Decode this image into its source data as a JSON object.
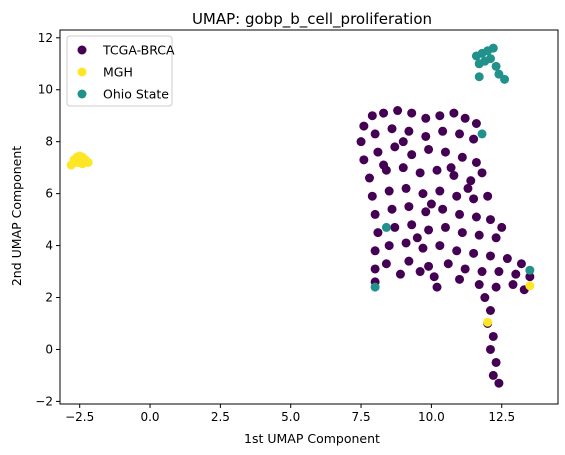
{
  "chart_data": {
    "type": "scatter",
    "title": "UMAP: gobp_b_cell_proliferation",
    "xlabel": "1st UMAP Component",
    "ylabel": "2nd UMAP Component",
    "xlim": [
      -3.2,
      14.5
    ],
    "ylim": [
      -2.1,
      12.3
    ],
    "xticks": [
      -2.5,
      0.0,
      2.5,
      5.0,
      7.5,
      10.0,
      12.5
    ],
    "xtick_labels": [
      "−2.5",
      "0.0",
      "2.5",
      "5.0",
      "7.5",
      "10.0",
      "12.5"
    ],
    "yticks": [
      -2,
      0,
      2,
      4,
      6,
      8,
      10,
      12
    ],
    "ytick_labels": [
      "−2",
      "0",
      "2",
      "4",
      "6",
      "8",
      "10",
      "12"
    ],
    "grid": false,
    "legend_position": "top-left",
    "series": [
      {
        "name": "TCGA-BRCA",
        "color": "#440154",
        "points": [
          [
            7.6,
            8.6
          ],
          [
            7.9,
            9.0
          ],
          [
            8.3,
            9.1
          ],
          [
            8.8,
            9.2
          ],
          [
            9.3,
            9.1
          ],
          [
            9.8,
            8.9
          ],
          [
            10.3,
            9.0
          ],
          [
            10.8,
            9.1
          ],
          [
            11.2,
            8.9
          ],
          [
            11.6,
            8.7
          ],
          [
            7.5,
            8.0
          ],
          [
            8.0,
            8.3
          ],
          [
            8.6,
            8.5
          ],
          [
            9.2,
            8.4
          ],
          [
            9.8,
            8.2
          ],
          [
            10.4,
            8.4
          ],
          [
            11.0,
            8.3
          ],
          [
            11.5,
            8.1
          ],
          [
            7.6,
            7.3
          ],
          [
            8.1,
            7.6
          ],
          [
            8.7,
            7.8
          ],
          [
            9.3,
            7.5
          ],
          [
            9.9,
            7.7
          ],
          [
            10.5,
            7.6
          ],
          [
            11.1,
            7.4
          ],
          [
            11.6,
            7.2
          ],
          [
            7.8,
            6.6
          ],
          [
            8.4,
            6.9
          ],
          [
            9.0,
            7.0
          ],
          [
            9.6,
            6.8
          ],
          [
            10.2,
            6.9
          ],
          [
            10.8,
            6.7
          ],
          [
            11.4,
            6.5
          ],
          [
            11.8,
            6.8
          ],
          [
            7.9,
            5.9
          ],
          [
            8.5,
            6.1
          ],
          [
            9.1,
            6.2
          ],
          [
            9.7,
            6.0
          ],
          [
            10.3,
            6.1
          ],
          [
            10.9,
            5.9
          ],
          [
            11.5,
            5.8
          ],
          [
            12.0,
            5.9
          ],
          [
            8.0,
            5.2
          ],
          [
            8.6,
            5.4
          ],
          [
            9.2,
            5.5
          ],
          [
            9.8,
            5.3
          ],
          [
            10.4,
            5.4
          ],
          [
            11.0,
            5.2
          ],
          [
            11.6,
            5.1
          ],
          [
            12.1,
            5.0
          ],
          [
            8.1,
            4.5
          ],
          [
            8.7,
            4.7
          ],
          [
            9.3,
            4.8
          ],
          [
            9.9,
            4.6
          ],
          [
            10.5,
            4.7
          ],
          [
            11.1,
            4.5
          ],
          [
            11.7,
            4.4
          ],
          [
            12.3,
            4.3
          ],
          [
            8.0,
            3.8
          ],
          [
            8.5,
            4.0
          ],
          [
            9.1,
            4.1
          ],
          [
            9.7,
            3.9
          ],
          [
            10.3,
            4.0
          ],
          [
            10.9,
            3.8
          ],
          [
            11.5,
            3.7
          ],
          [
            12.1,
            3.6
          ],
          [
            12.7,
            3.5
          ],
          [
            8.0,
            3.1
          ],
          [
            8.4,
            3.3
          ],
          [
            9.2,
            3.4
          ],
          [
            9.9,
            3.2
          ],
          [
            10.6,
            3.3
          ],
          [
            11.2,
            3.1
          ],
          [
            11.8,
            3.0
          ],
          [
            12.4,
            3.0
          ],
          [
            13.0,
            2.9
          ],
          [
            13.5,
            2.8
          ],
          [
            8.0,
            2.6
          ],
          [
            10.2,
            2.4
          ],
          [
            11.0,
            2.7
          ],
          [
            11.7,
            2.5
          ],
          [
            12.3,
            2.4
          ],
          [
            12.9,
            2.5
          ],
          [
            13.3,
            2.3
          ],
          [
            11.9,
            2.0
          ],
          [
            12.1,
            1.5
          ],
          [
            12.0,
            1.0
          ],
          [
            12.2,
            0.5
          ],
          [
            12.1,
            0.0
          ],
          [
            12.3,
            -0.5
          ],
          [
            12.2,
            -1.0
          ],
          [
            12.4,
            -1.3
          ],
          [
            9.0,
            8.0
          ],
          [
            10.0,
            5.6
          ],
          [
            8.3,
            7.1
          ],
          [
            9.5,
            4.3
          ],
          [
            10.7,
            7.0
          ],
          [
            11.3,
            6.2
          ],
          [
            12.5,
            4.7
          ],
          [
            13.2,
            3.3
          ],
          [
            9.6,
            3.0
          ],
          [
            10.1,
            2.8
          ],
          [
            8.9,
            2.9
          ]
        ]
      },
      {
        "name": "MGH",
        "color": "#fde725",
        "points": [
          [
            -2.8,
            7.1
          ],
          [
            -2.7,
            7.3
          ],
          [
            -2.6,
            7.4
          ],
          [
            -2.5,
            7.45
          ],
          [
            -2.4,
            7.4
          ],
          [
            -2.3,
            7.3
          ],
          [
            -2.2,
            7.2
          ],
          [
            -2.5,
            7.2
          ],
          [
            -2.4,
            7.15
          ],
          [
            -2.6,
            7.2
          ],
          [
            12.0,
            1.05
          ],
          [
            13.5,
            2.45
          ]
        ]
      },
      {
        "name": "Ohio State",
        "color": "#21918c",
        "points": [
          [
            11.6,
            11.3
          ],
          [
            11.8,
            11.4
          ],
          [
            12.0,
            11.5
          ],
          [
            12.2,
            11.6
          ],
          [
            11.7,
            11.0
          ],
          [
            11.9,
            11.1
          ],
          [
            12.1,
            11.2
          ],
          [
            12.3,
            10.9
          ],
          [
            12.4,
            10.6
          ],
          [
            12.6,
            10.4
          ],
          [
            11.7,
            10.5
          ],
          [
            11.8,
            8.3
          ],
          [
            8.4,
            4.7
          ],
          [
            8.0,
            2.4
          ],
          [
            13.5,
            3.05
          ]
        ]
      }
    ]
  }
}
